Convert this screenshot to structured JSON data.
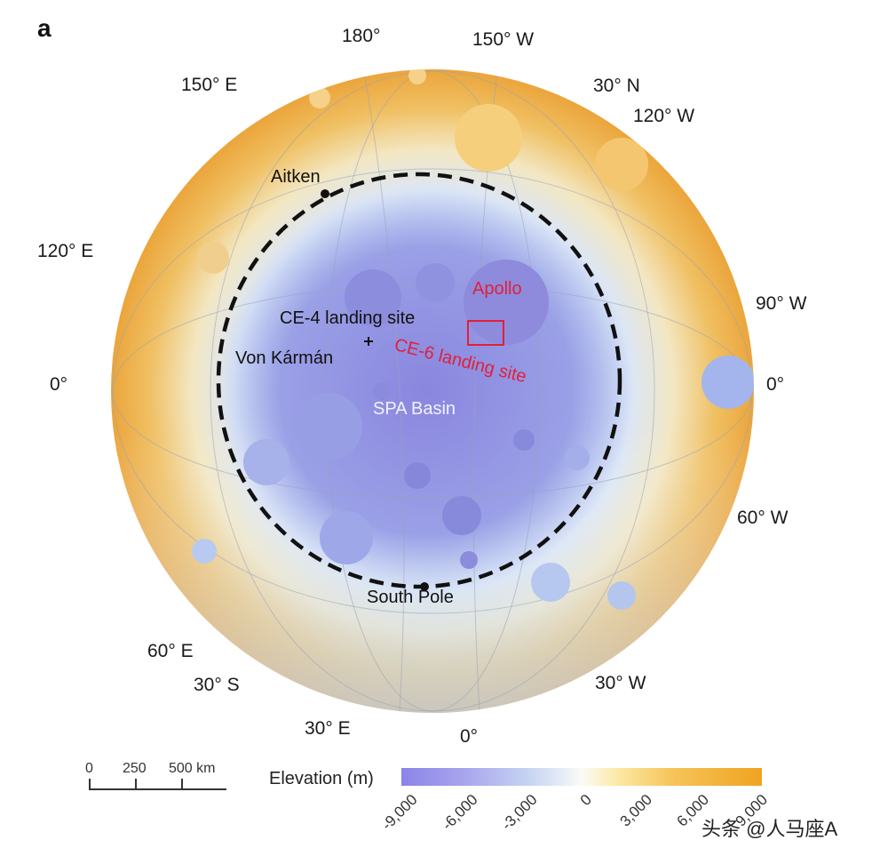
{
  "panel_label": "a",
  "longitude_labels": {
    "top_180": "180°",
    "top_150w": "150° W",
    "top_150e": "150° E",
    "top_30n": "30° N",
    "top_120w": "120° W",
    "left_120e": "120° E",
    "right_90w": "90° W",
    "left_0": "0°",
    "right_0": "0°",
    "right_60w": "60° W",
    "bottom_60e": "60° E",
    "bottom_30s": "30° S",
    "bottom_30w": "30° W",
    "bottom_30e": "30° E",
    "bottom_0": "0°"
  },
  "features": {
    "aitken": "Aitken",
    "apollo": "Apollo",
    "ce4": "CE-4 landing site",
    "von_karman": "Von Kármán",
    "ce6": "CE-6 landing site",
    "spa": "SPA Basin",
    "south_pole": "South Pole"
  },
  "scale_bar": {
    "t0": "0",
    "t1": "250",
    "t2": "500 km"
  },
  "legend": {
    "title": "Elevation (m)",
    "ticks": [
      "-9,000",
      "-6,000",
      "-3,000",
      "0",
      "3,000",
      "6,000",
      "9,000"
    ]
  },
  "watermark": "头条 @人马座A",
  "colors": {
    "low": "#8b84e8",
    "mid": "#fbfbf6",
    "high": "#f0a321",
    "annotation": "#e0203a"
  }
}
